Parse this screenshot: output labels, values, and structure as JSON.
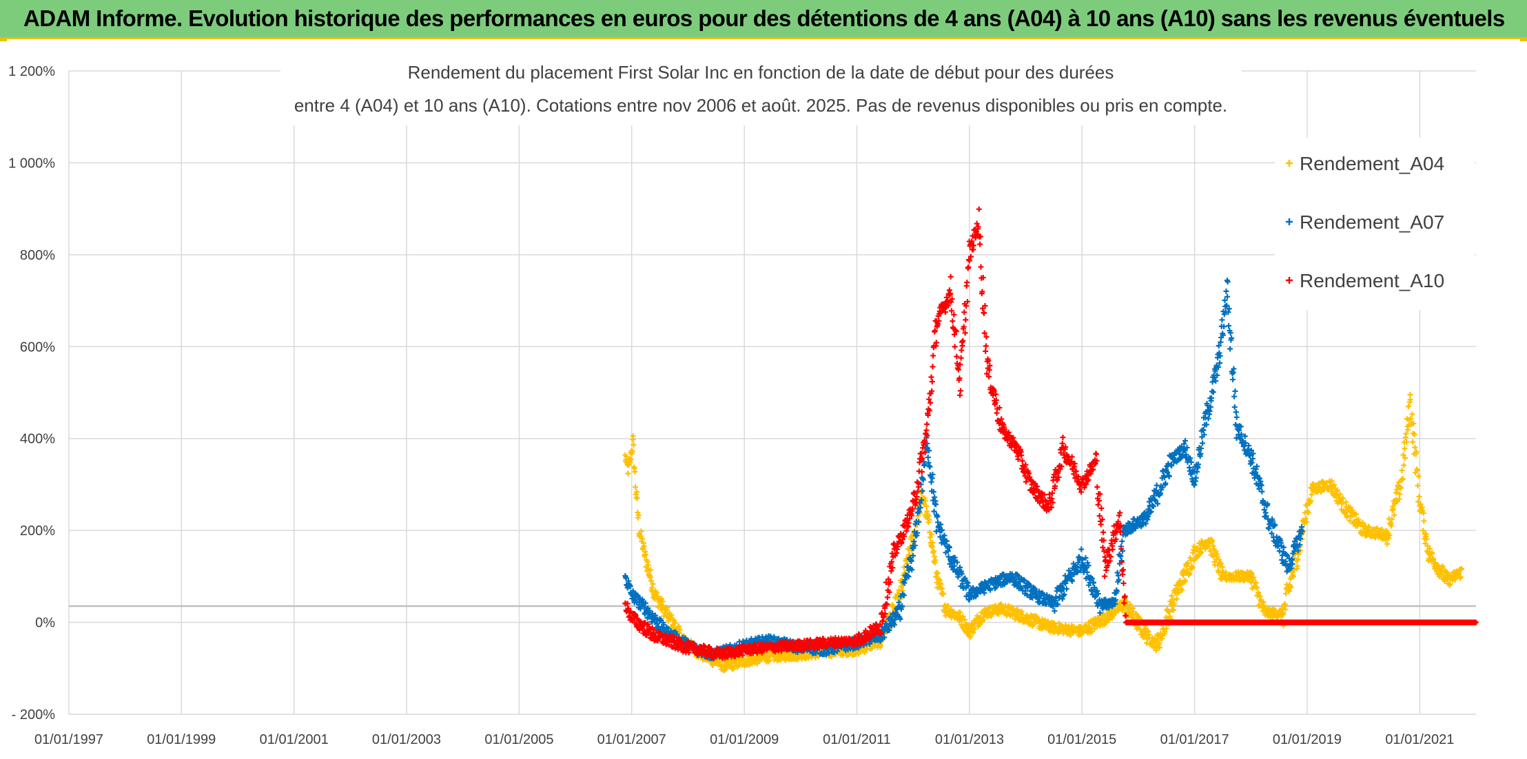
{
  "header": {
    "title": "ADAM Informe. Evolution historique des performances en euros pour des détentions de 4 ans (A04) à 10 ans (A10) sans les revenus éventuels"
  },
  "colors": {
    "banner": "#7ccc7c",
    "A04": "#ffc000",
    "A07": "#0070c0",
    "A10": "#ff0000",
    "grid": "#d9d9d9",
    "zero_line": "#bfbfbf"
  },
  "chart_data": {
    "type": "scatter",
    "title_line1": "Rendement du placement First Solar Inc en fonction de la date de début pour des durées",
    "title_line2": "entre 4 (A04) et 10 ans (A10). Cotations entre nov 2006 et août. 2025. Pas de revenus disponibles ou pris en compte.",
    "xlabel": "",
    "ylabel": "",
    "x_ticks": [
      "01/01/1997",
      "01/01/1999",
      "01/01/2001",
      "01/01/2003",
      "01/01/2005",
      "01/01/2007",
      "01/01/2009",
      "01/01/2011",
      "01/01/2013",
      "01/01/2015",
      "01/01/2017",
      "01/01/2019",
      "01/01/2021"
    ],
    "y_ticks": [
      "- 200%",
      "0%",
      "200%",
      "400%",
      "600%",
      "800%",
      "1 000%",
      "1 200%"
    ],
    "xlim": [
      "1997-01-01",
      "2022-01-01"
    ],
    "ylim": [
      -200,
      1200
    ],
    "grid": true,
    "legend_position": "right",
    "series": [
      {
        "name": "Rendement_A04",
        "color": "#ffc000",
        "points": [
          [
            "2006-11-20",
            360
          ],
          [
            "2006-12-10",
            330
          ],
          [
            "2007-01-10",
            390
          ],
          [
            "2007-01-25",
            300
          ],
          [
            "2007-02-20",
            200
          ],
          [
            "2007-04-01",
            140
          ],
          [
            "2007-06-01",
            60
          ],
          [
            "2007-09-01",
            10
          ],
          [
            "2007-12-01",
            -40
          ],
          [
            "2008-04-01",
            -70
          ],
          [
            "2008-09-01",
            -95
          ],
          [
            "2009-01-01",
            -85
          ],
          [
            "2009-06-01",
            -75
          ],
          [
            "2010-01-01",
            -70
          ],
          [
            "2010-06-01",
            -65
          ],
          [
            "2011-01-01",
            -60
          ],
          [
            "2011-06-01",
            -40
          ],
          [
            "2011-10-01",
            50
          ],
          [
            "2012-01-01",
            180
          ],
          [
            "2012-03-01",
            280
          ],
          [
            "2012-05-01",
            180
          ],
          [
            "2012-06-01",
            100
          ],
          [
            "2012-08-01",
            30
          ],
          [
            "2012-11-01",
            10
          ],
          [
            "2013-01-01",
            -20
          ],
          [
            "2013-04-01",
            20
          ],
          [
            "2013-08-01",
            30
          ],
          [
            "2014-01-01",
            10
          ],
          [
            "2014-06-01",
            -10
          ],
          [
            "2015-01-01",
            -20
          ],
          [
            "2015-06-01",
            10
          ],
          [
            "2015-10-01",
            40
          ],
          [
            "2016-03-01",
            -30
          ],
          [
            "2016-05-01",
            -50
          ],
          [
            "2016-09-01",
            60
          ],
          [
            "2017-01-01",
            150
          ],
          [
            "2017-04-01",
            180
          ],
          [
            "2017-07-01",
            100
          ],
          [
            "2018-01-01",
            100
          ],
          [
            "2018-04-01",
            20
          ],
          [
            "2018-08-01",
            20
          ],
          [
            "2018-12-01",
            200
          ],
          [
            "2019-02-01",
            290
          ],
          [
            "2019-06-01",
            300
          ],
          [
            "2019-09-01",
            250
          ],
          [
            "2020-01-01",
            200
          ],
          [
            "2020-06-01",
            190
          ],
          [
            "2020-09-01",
            300
          ],
          [
            "2020-11-01",
            480
          ],
          [
            "2021-01-01",
            260
          ],
          [
            "2021-03-01",
            150
          ],
          [
            "2021-07-01",
            90
          ],
          [
            "2021-10-01",
            110
          ]
        ]
      },
      {
        "name": "Rendement_A07",
        "color": "#0070c0",
        "points": [
          [
            "2006-11-20",
            100
          ],
          [
            "2007-01-01",
            60
          ],
          [
            "2007-04-01",
            30
          ],
          [
            "2007-08-01",
            -20
          ],
          [
            "2008-01-01",
            -50
          ],
          [
            "2008-06-01",
            -70
          ],
          [
            "2008-10-01",
            -60
          ],
          [
            "2009-01-01",
            -50
          ],
          [
            "2009-06-01",
            -40
          ],
          [
            "2010-01-01",
            -55
          ],
          [
            "2010-06-01",
            -60
          ],
          [
            "2011-01-01",
            -45
          ],
          [
            "2011-06-01",
            -30
          ],
          [
            "2011-10-01",
            20
          ],
          [
            "2012-01-01",
            150
          ],
          [
            "2012-03-01",
            300
          ],
          [
            "2012-04-01",
            400
          ],
          [
            "2012-06-01",
            220
          ],
          [
            "2012-09-01",
            140
          ],
          [
            "2013-01-01",
            60
          ],
          [
            "2013-05-01",
            80
          ],
          [
            "2013-10-01",
            100
          ],
          [
            "2014-03-01",
            60
          ],
          [
            "2014-07-01",
            40
          ],
          [
            "2015-01-01",
            140
          ],
          [
            "2015-05-01",
            40
          ],
          [
            "2015-08-01",
            40
          ],
          [
            "2015-10-01",
            200
          ],
          [
            "2016-03-01",
            230
          ],
          [
            "2016-08-01",
            350
          ],
          [
            "2016-11-01",
            380
          ],
          [
            "2017-01-01",
            310
          ],
          [
            "2017-03-01",
            420
          ],
          [
            "2017-06-01",
            560
          ],
          [
            "2017-08-01",
            720
          ],
          [
            "2017-10-01",
            430
          ],
          [
            "2018-01-01",
            360
          ],
          [
            "2018-05-01",
            220
          ],
          [
            "2018-09-01",
            120
          ],
          [
            "2018-12-01",
            200
          ]
        ]
      },
      {
        "name": "Rendement_A10",
        "color": "#ff0000",
        "points": [
          [
            "2006-11-20",
            40
          ],
          [
            "2007-01-01",
            10
          ],
          [
            "2007-06-01",
            -30
          ],
          [
            "2008-01-01",
            -55
          ],
          [
            "2008-08-01",
            -70
          ],
          [
            "2009-01-01",
            -60
          ],
          [
            "2009-06-01",
            -55
          ],
          [
            "2010-01-01",
            -50
          ],
          [
            "2010-06-01",
            -45
          ],
          [
            "2011-01-01",
            -40
          ],
          [
            "2011-06-01",
            -10
          ],
          [
            "2011-09-01",
            150
          ],
          [
            "2011-11-01",
            200
          ],
          [
            "2012-01-01",
            250
          ],
          [
            "2012-04-01",
            420
          ],
          [
            "2012-06-01",
            650
          ],
          [
            "2012-09-01",
            720
          ],
          [
            "2012-11-01",
            520
          ],
          [
            "2013-01-01",
            800
          ],
          [
            "2013-03-01",
            870
          ],
          [
            "2013-05-01",
            550
          ],
          [
            "2013-08-01",
            420
          ],
          [
            "2013-11-01",
            380
          ],
          [
            "2014-02-01",
            300
          ],
          [
            "2014-06-01",
            250
          ],
          [
            "2014-09-01",
            380
          ],
          [
            "2015-01-01",
            300
          ],
          [
            "2015-04-01",
            350
          ],
          [
            "2015-06-01",
            120
          ],
          [
            "2015-09-01",
            230
          ],
          [
            "2015-10-15",
            0
          ],
          [
            "2021-12-31",
            0
          ]
        ]
      }
    ]
  }
}
